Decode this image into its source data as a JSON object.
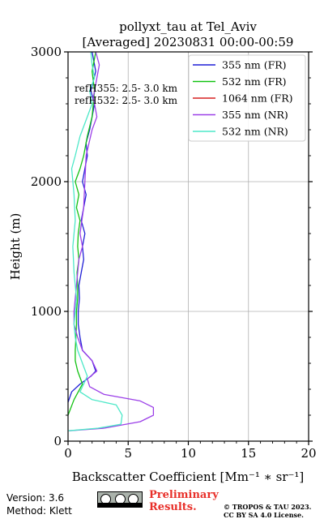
{
  "chart_data": {
    "type": "line",
    "title_line1": "pollyxt_tau at Tel_Aviv",
    "title_line2": "[Averaged] 20230831 00:00-00:59",
    "xlabel": "Backscatter Coefficient [Mm⁻¹ ∗ sr⁻¹]",
    "ylabel": "Height (m)",
    "xlim": [
      0,
      20
    ],
    "ylim": [
      0,
      3000
    ],
    "xticks": [
      0,
      5,
      10,
      15,
      20
    ],
    "yticks": [
      0,
      1000,
      2000,
      3000
    ],
    "xtick_labels": [
      "0",
      "5",
      "10",
      "15",
      "20"
    ],
    "ytick_labels": [
      "0",
      "1000",
      "2000",
      "3000"
    ],
    "grid": true,
    "legend_position": "top-right",
    "annotations": [
      "refH355:  2.5- 3.0 km",
      "refH532:  2.5- 3.0 km"
    ],
    "series": [
      {
        "name": "355 nm (FR)",
        "color": "#1f1fd6",
        "x": [
          0.0,
          0.3,
          1.0,
          1.9,
          2.3,
          2.0,
          1.2,
          1.0,
          0.85,
          0.85,
          0.95,
          0.9,
          1.1,
          1.3,
          1.2,
          1.4,
          1.1,
          1.3,
          1.5,
          1.2,
          1.4,
          1.6,
          1.5,
          1.8,
          2.0,
          2.2,
          1.9,
          2.3,
          2.0
        ],
        "y": [
          300,
          380,
          440,
          500,
          540,
          620,
          700,
          800,
          900,
          1000,
          1100,
          1200,
          1300,
          1400,
          1500,
          1600,
          1700,
          1800,
          1900,
          2000,
          2100,
          2200,
          2300,
          2400,
          2500,
          2600,
          2700,
          2850,
          3000
        ]
      },
      {
        "name": "532 nm (FR)",
        "color": "#12c212",
        "x": [
          0.0,
          0.5,
          1.2,
          0.8,
          0.6,
          0.6,
          0.65,
          0.7,
          0.7,
          0.8,
          0.8,
          0.75,
          0.9,
          0.8,
          0.85,
          1.0,
          0.7,
          0.9,
          0.6,
          1.0,
          1.3,
          1.6,
          2.0,
          2.1,
          2.2,
          2.0,
          2.3
        ],
        "y": [
          200,
          320,
          440,
          540,
          620,
          700,
          800,
          900,
          1000,
          1100,
          1200,
          1300,
          1400,
          1500,
          1600,
          1700,
          1800,
          1900,
          2000,
          2100,
          2200,
          2350,
          2500,
          2600,
          2700,
          2850,
          3000
        ]
      },
      {
        "name": "1064 nm (FR)",
        "color": "#d62020",
        "x": [],
        "y": []
      },
      {
        "name": "355 nm (NR)",
        "color": "#9b3fe8",
        "x": [
          0.1,
          3.0,
          6.0,
          7.1,
          7.1,
          6.0,
          3.0,
          1.8,
          1.6,
          2.4,
          2.0,
          1.2,
          0.8,
          0.5,
          0.5,
          0.6,
          0.7,
          0.8,
          0.9,
          1.2,
          1.0,
          1.3,
          1.4,
          1.5,
          2.0,
          2.4,
          2.1,
          2.4,
          2.6,
          2.3
        ],
        "y": [
          80,
          100,
          150,
          200,
          260,
          310,
          360,
          420,
          480,
          540,
          620,
          700,
          800,
          900,
          1000,
          1100,
          1200,
          1300,
          1400,
          1500,
          1600,
          1800,
          2000,
          2200,
          2400,
          2500,
          2650,
          2800,
          2900,
          3000
        ]
      },
      {
        "name": "532 nm (NR)",
        "color": "#4de8c8",
        "x": [
          0.05,
          2.5,
          4.4,
          4.5,
          4.0,
          2.0,
          1.0,
          1.6,
          1.2,
          0.8,
          0.6,
          0.5,
          0.6,
          0.7,
          0.5,
          0.4,
          0.6,
          0.5,
          0.3,
          0.6,
          1.0,
          1.6,
          2.0,
          1.8,
          2.2,
          2.0,
          1.9
        ],
        "y": [
          80,
          100,
          130,
          200,
          280,
          320,
          380,
          500,
          600,
          700,
          800,
          900,
          1000,
          1100,
          1300,
          1500,
          1700,
          1900,
          2100,
          2200,
          2350,
          2500,
          2600,
          2700,
          2800,
          2900,
          3000
        ]
      }
    ]
  },
  "footer": {
    "version": "Version: 3.6",
    "method": "Method: Klett",
    "preliminary_line1": "Preliminary",
    "preliminary_line2": "Results.",
    "copyright_line1": "© TROPOS & TAU 2023.",
    "copyright_line2": "CC BY SA 4.0 License."
  }
}
